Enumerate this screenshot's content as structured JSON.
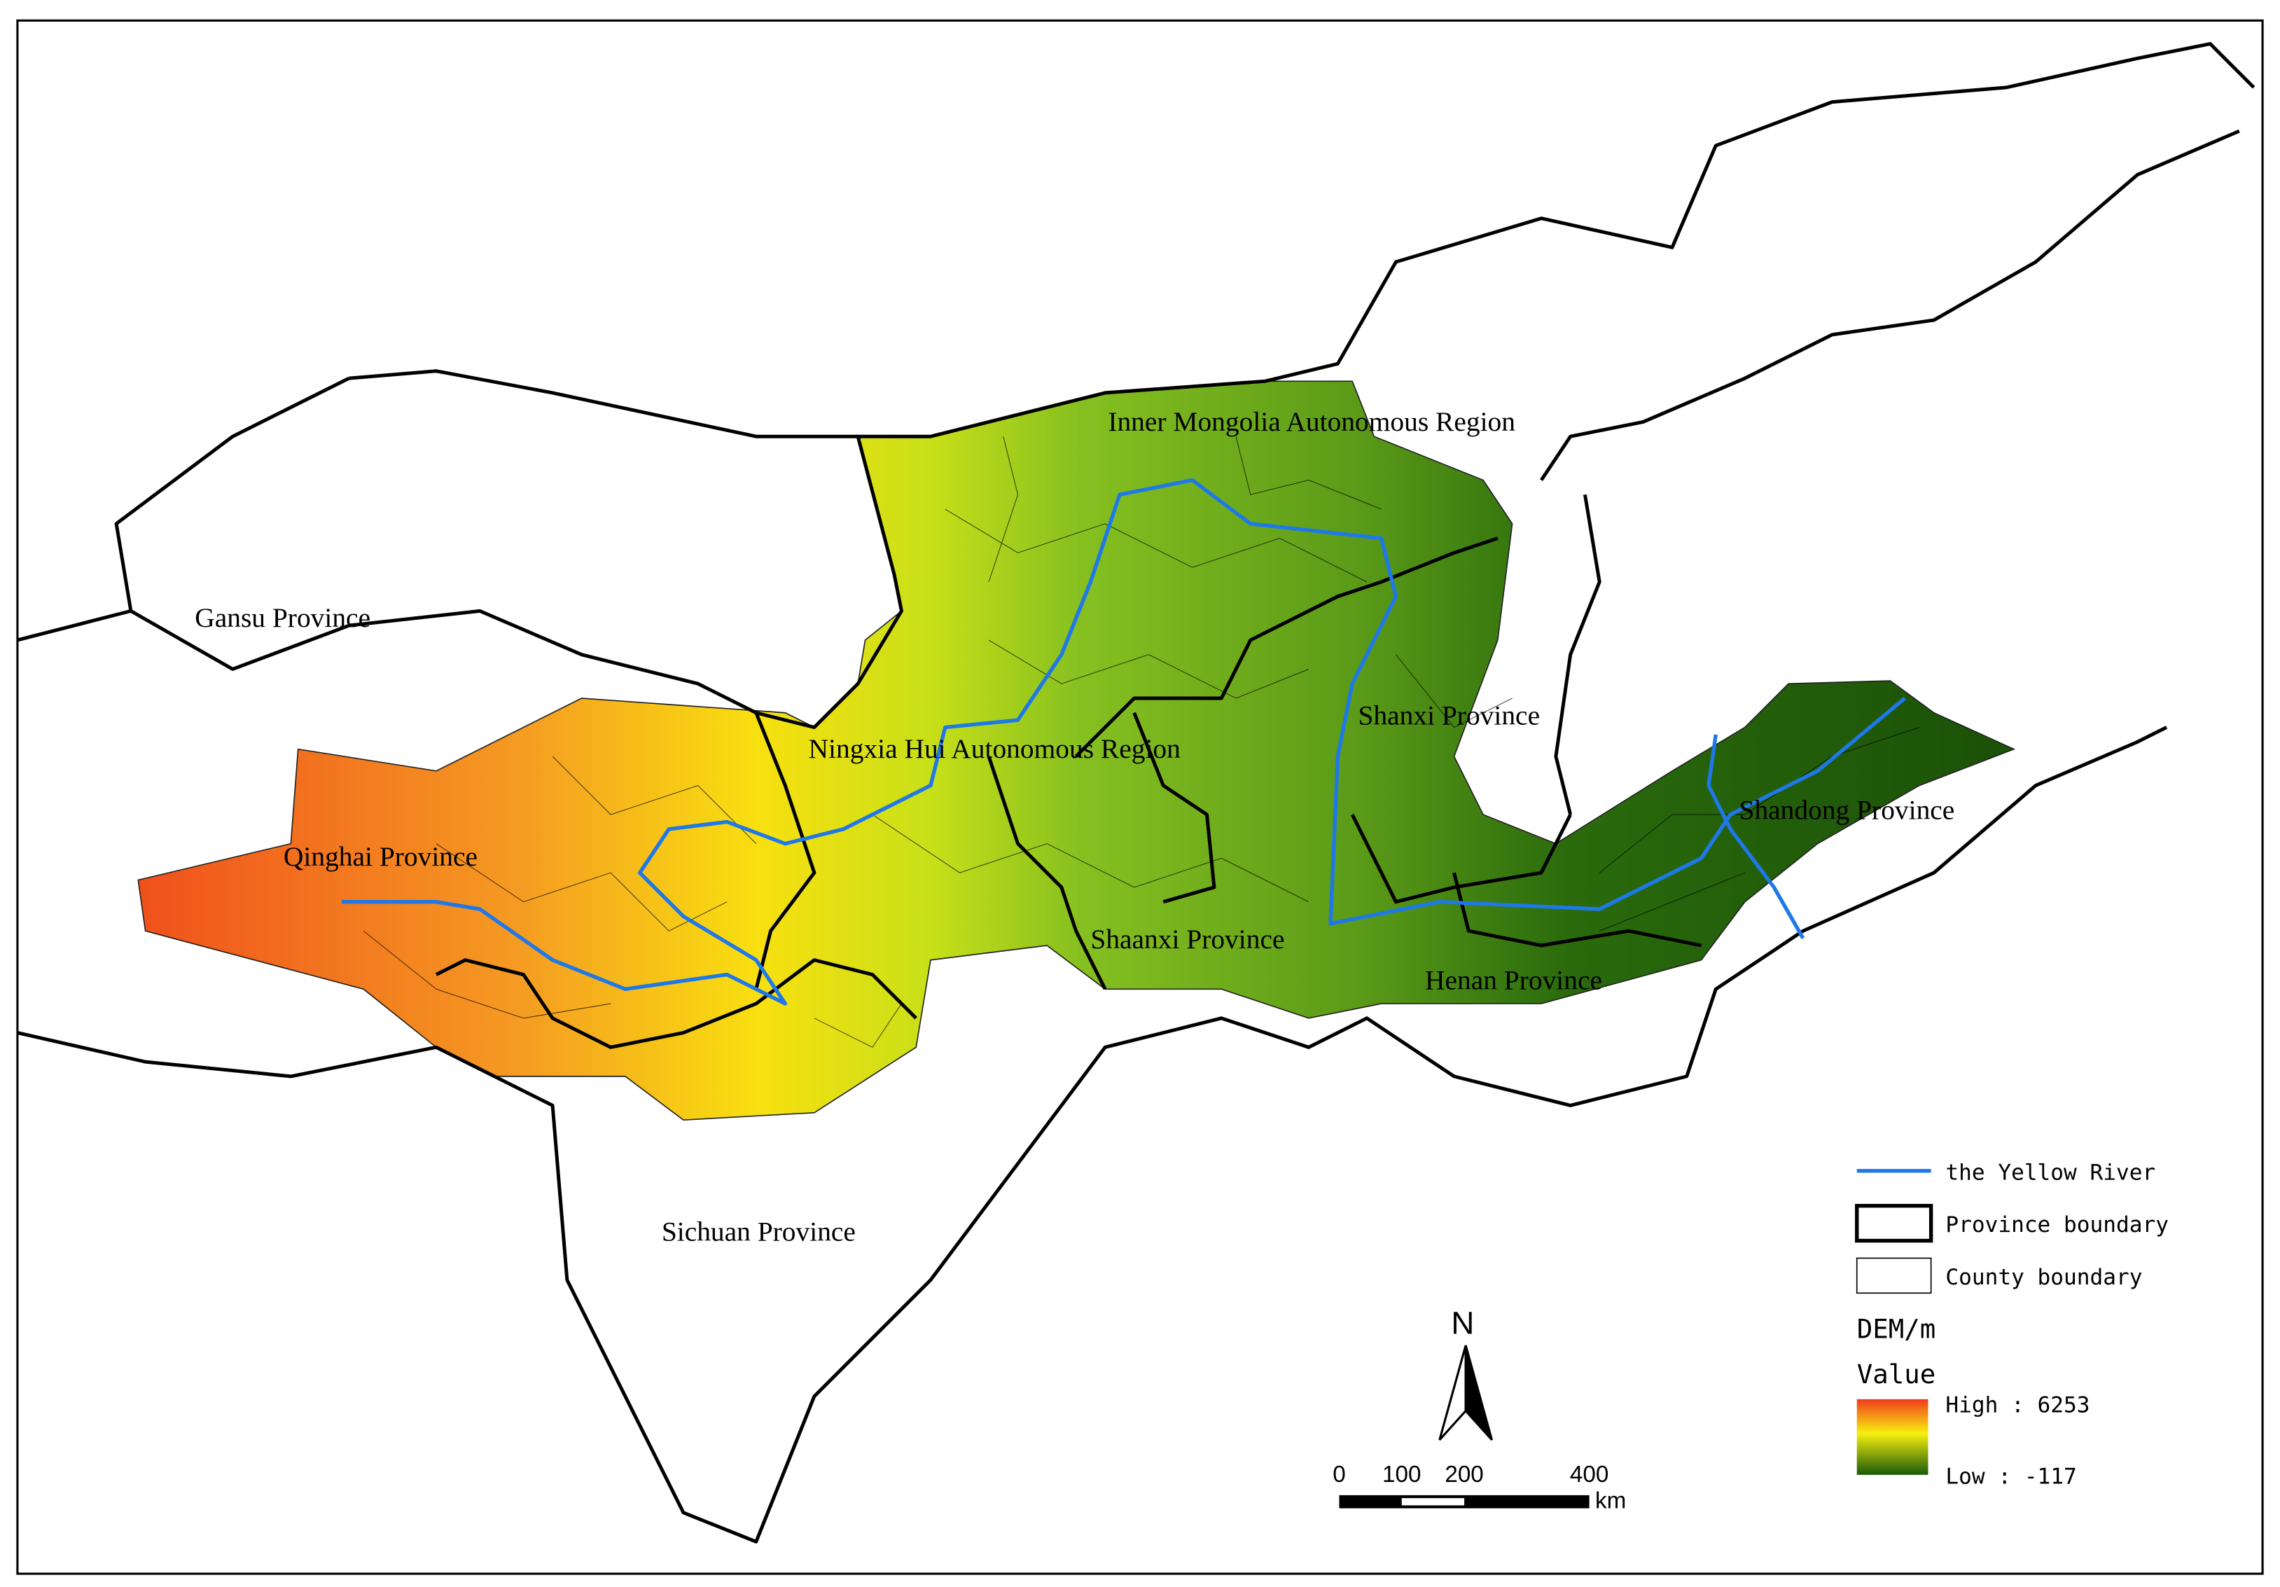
{
  "map": {
    "labels": [
      "Inner Mongolia Autonomous Region",
      "Gansu Province",
      "Ningxia Hui Autonomous Region",
      "Shanxi Province",
      "Shandong Province",
      "Qinghai Province",
      "Shaanxi Province",
      "Henan Province",
      "Sichuan Province"
    ],
    "legend": {
      "river": "the Yellow River",
      "province": "Province boundary",
      "county": "County boundary",
      "title": "DEM/m",
      "value": "Value",
      "high": "High : 6253",
      "low": "Low : -117"
    },
    "north": "N",
    "scale": {
      "ticks": [
        "0",
        "100",
        "200",
        "400"
      ],
      "unit": "km"
    }
  }
}
